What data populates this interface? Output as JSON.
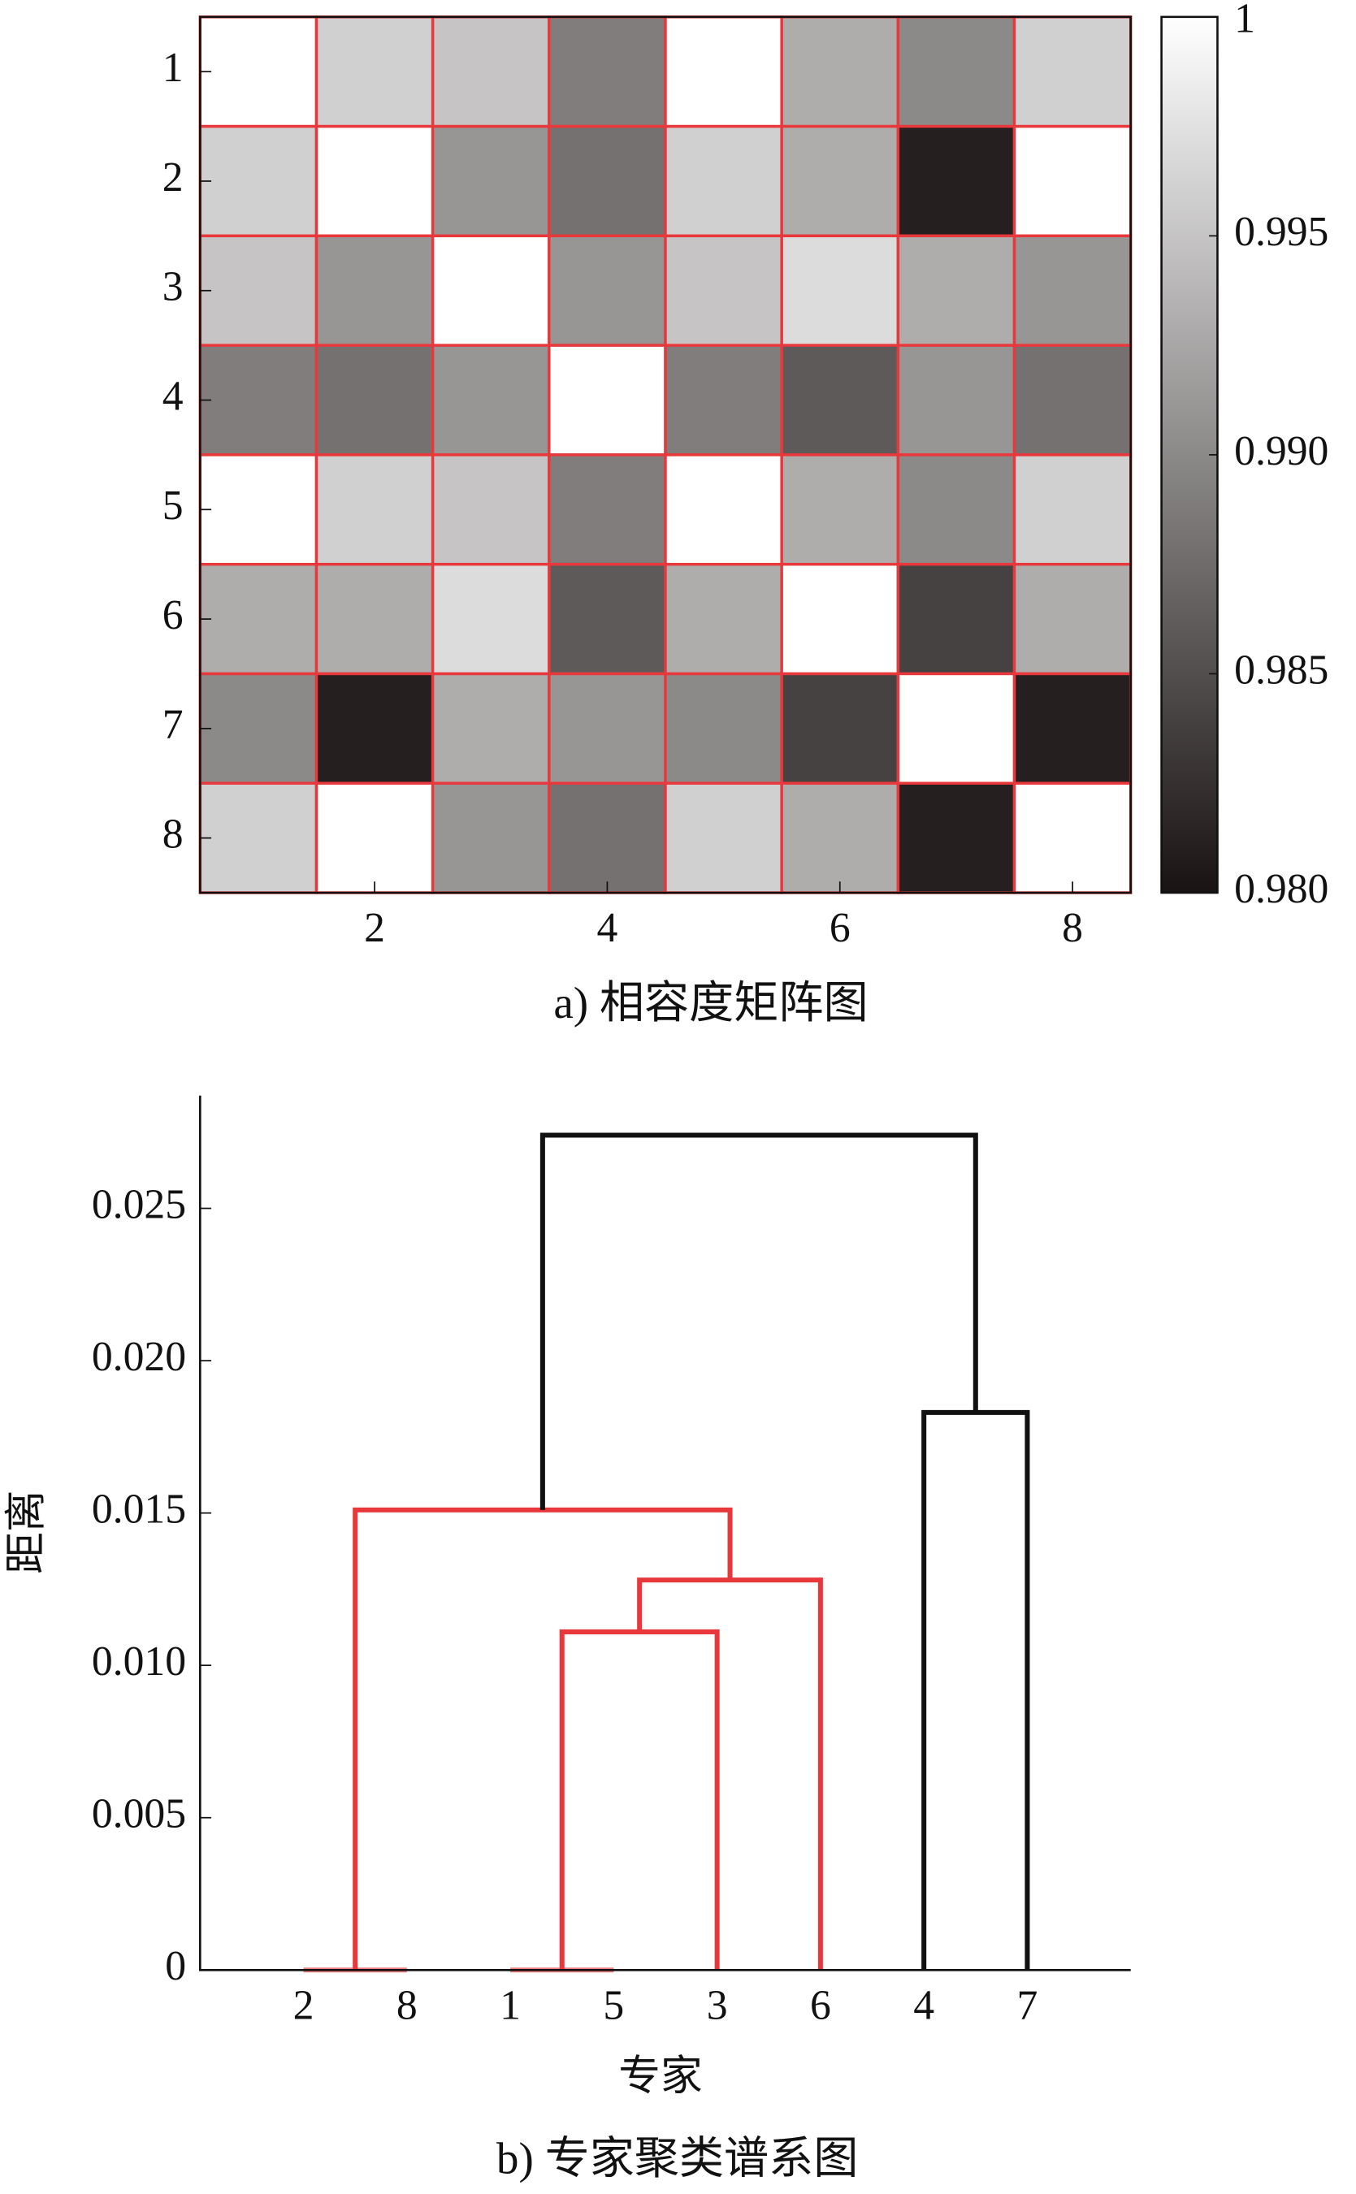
{
  "chart_data": [
    {
      "type": "heatmap",
      "caption": "a) 相容度矩阵图",
      "matrix": [
        [
          1,
          0.996,
          0.995,
          0.989,
          1,
          0.993,
          0.99,
          0.996
        ],
        [
          0.996,
          1,
          0.991,
          0.988,
          0.996,
          0.993,
          0.981,
          1
        ],
        [
          0.995,
          0.991,
          1,
          0.991,
          0.995,
          0.997,
          0.993,
          0.991
        ],
        [
          0.989,
          0.988,
          0.991,
          1,
          0.989,
          0.986,
          0.991,
          0.988
        ],
        [
          1,
          0.996,
          0.995,
          0.989,
          1,
          0.993,
          0.99,
          0.996
        ],
        [
          0.993,
          0.993,
          0.997,
          0.986,
          0.993,
          1,
          0.984,
          0.993
        ],
        [
          0.99,
          0.981,
          0.993,
          0.991,
          0.99,
          0.984,
          1,
          0.981
        ],
        [
          0.996,
          1,
          0.991,
          0.988,
          0.996,
          0.993,
          0.981,
          1
        ]
      ],
      "xlim": [
        0.5,
        8.5
      ],
      "ylim": [
        0.5,
        8.5
      ],
      "xticks": [
        2,
        4,
        6,
        8
      ],
      "yticks": [
        1,
        2,
        3,
        4,
        5,
        6,
        7,
        8
      ],
      "clim": [
        0.98,
        1
      ],
      "cticks": [
        1,
        0.995,
        {
          "value": 0.99,
          "label": "0.990"
        },
        0.985,
        {
          "value": 0.98,
          "label": "0.980"
        }
      ],
      "colormap": [
        "#191313",
        "#ffffff"
      ],
      "cell_border": "#e8383c"
    },
    {
      "type": "dendrogram",
      "caption": "b) 专家聚类谱系图",
      "xlabel": "专家",
      "ylabel": "距离",
      "categories": [
        "2",
        "8",
        "1",
        "5",
        "3",
        "6",
        "4",
        "7"
      ],
      "merges": [
        {
          "pair": [
            0,
            1
          ],
          "height": 0,
          "color": "#f08080"
        },
        {
          "pair": [
            2,
            3
          ],
          "height": 0,
          "color": "#f08080"
        },
        {
          "pair": [
            9,
            4
          ],
          "height": 0.0111,
          "color": "#e8383c"
        },
        {
          "pair": [
            10,
            5
          ],
          "height": 0.0128,
          "color": "#e8383c"
        },
        {
          "pair": [
            8,
            11
          ],
          "height": 0.0151,
          "color": "#e8383c"
        },
        {
          "pair": [
            6,
            7
          ],
          "height": 0.0183,
          "color": "#111111"
        },
        {
          "pair": [
            12,
            13
          ],
          "height": 0.0274,
          "color": "#111111"
        }
      ],
      "ylim": [
        0,
        0.0287
      ],
      "yticks": [
        0,
        0.005,
        {
          "value": 0.01,
          "label": "0.010"
        },
        0.015,
        {
          "value": 0.02,
          "label": "0.020"
        },
        0.025
      ]
    }
  ]
}
